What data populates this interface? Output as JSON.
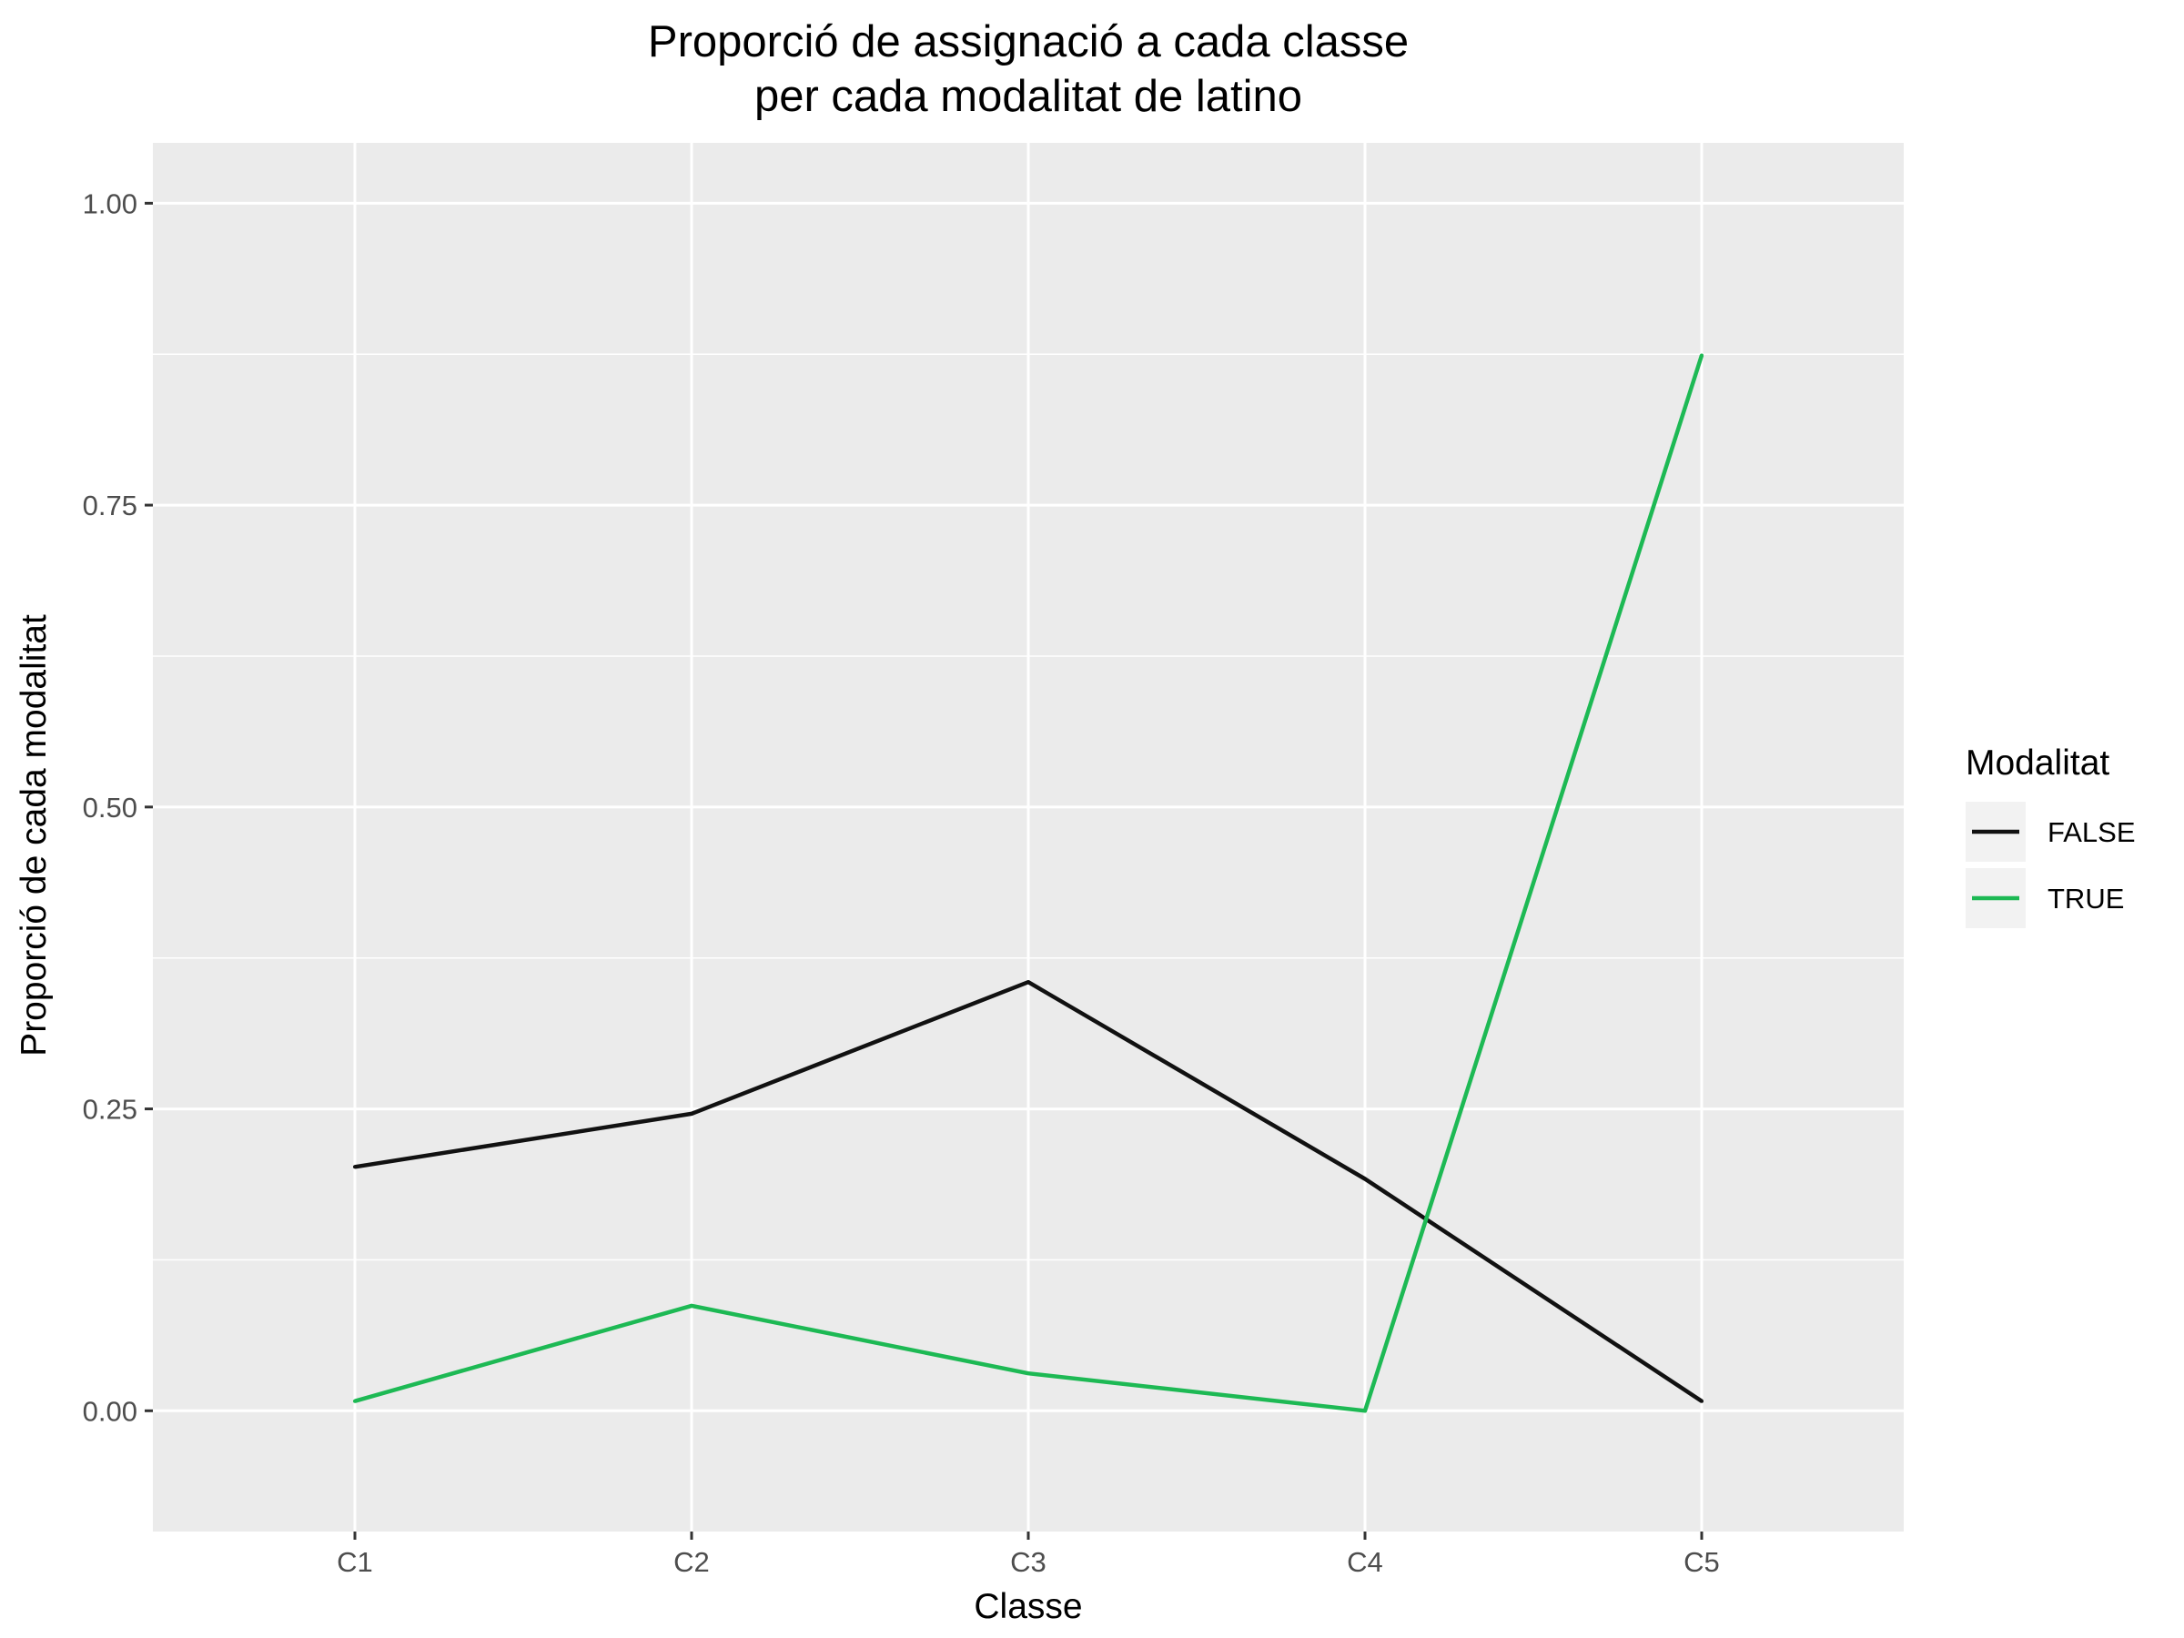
{
  "chart_data": {
    "type": "line",
    "title": "Proporció de assignació a cada classe",
    "subtitle": "per cada modalitat de latino",
    "xlabel": "Classe",
    "ylabel": "Proporció de cada modalitat",
    "categories": [
      "C1",
      "C2",
      "C3",
      "C4",
      "C5"
    ],
    "ylim": [
      -0.1,
      1.05
    ],
    "yticks": [
      0,
      0.25,
      0.5,
      0.75,
      1
    ],
    "ytick_labels": [
      "0.00",
      "0.25",
      "0.50",
      "0.75",
      "1.00"
    ],
    "grid": true,
    "legend": {
      "title": "Modalitat",
      "position": "right"
    },
    "series": [
      {
        "name": "FALSE",
        "color": "#111111",
        "values": [
          0.202,
          0.246,
          0.355,
          0.192,
          0.008
        ]
      },
      {
        "name": "TRUE",
        "color": "#1db954",
        "values": [
          0.008,
          0.087,
          0.031,
          0.0,
          0.874
        ]
      }
    ]
  },
  "colors": {
    "panel": "#ebebeb",
    "grid": "#ffffff"
  }
}
